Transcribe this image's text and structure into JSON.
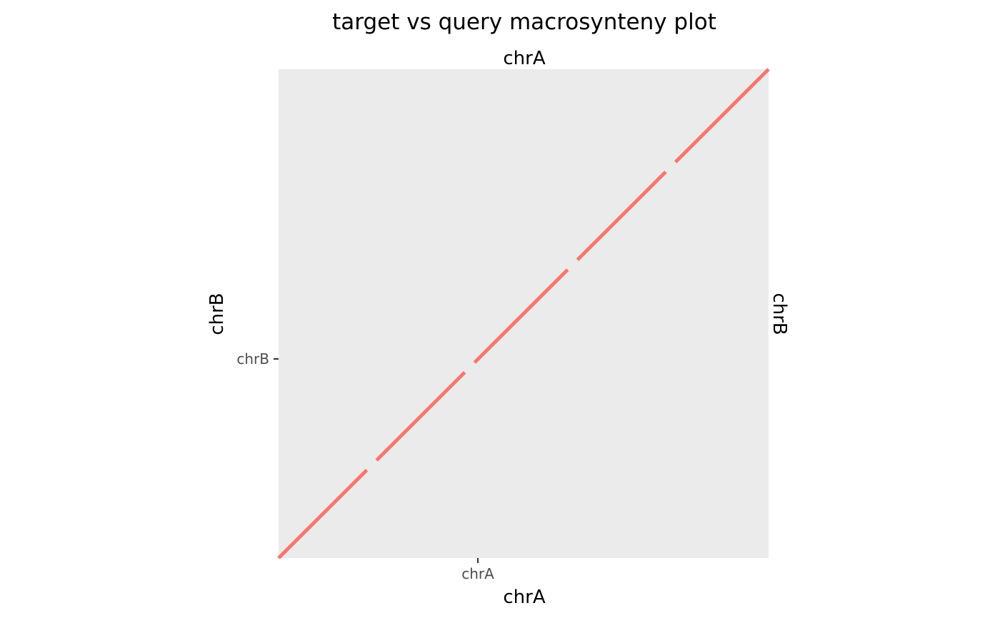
{
  "chart_data": {
    "type": "line",
    "title": "target vs query macrosynteny plot",
    "xlabel": "chrA",
    "ylabel": "chrB",
    "top_strip": "chrA",
    "right_strip": "chrB",
    "x_ticks": [
      "chrA"
    ],
    "y_ticks": [
      "chrB"
    ],
    "xlim": [
      0,
      1
    ],
    "ylim": [
      0,
      1
    ],
    "grid": false,
    "panel_background": "#ebebeb",
    "series": [
      {
        "color": "#f8766d",
        "segments": [
          [
            [
              0.0,
              0.0
            ],
            [
              0.18,
              0.18
            ]
          ],
          [
            [
              0.2,
              0.2
            ],
            [
              0.38,
              0.38
            ]
          ],
          [
            [
              0.4,
              0.4
            ],
            [
              0.59,
              0.59
            ]
          ],
          [
            [
              0.61,
              0.61
            ],
            [
              0.79,
              0.79
            ]
          ],
          [
            [
              0.81,
              0.81
            ],
            [
              1.0,
              1.0
            ]
          ]
        ]
      }
    ]
  }
}
